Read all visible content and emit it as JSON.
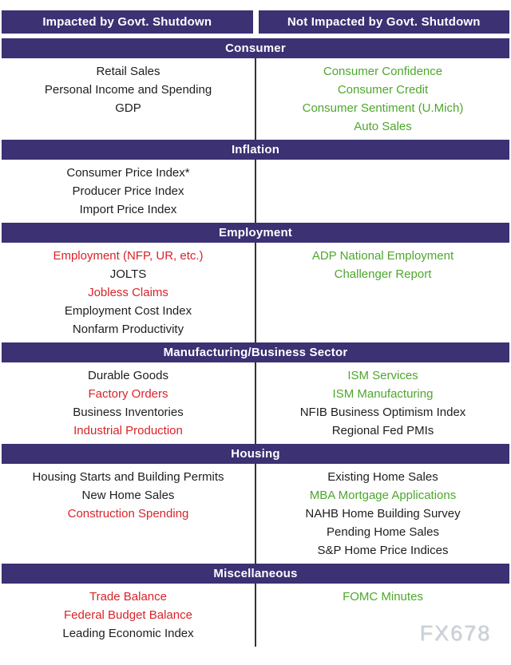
{
  "chart_data": {
    "type": "table",
    "columns": [
      "Impacted by Govt. Shutdown",
      "Not Impacted by Govt. Shutdown"
    ],
    "sections": [
      {
        "title": "Consumer",
        "impacted": [
          {
            "label": "Retail Sales",
            "color": "black"
          },
          {
            "label": "Personal Income and Spending",
            "color": "black"
          },
          {
            "label": "GDP",
            "color": "black"
          }
        ],
        "not_impacted": [
          {
            "label": "Consumer Confidence",
            "color": "green"
          },
          {
            "label": "Consumer Credit",
            "color": "green"
          },
          {
            "label": "Consumer Sentiment (U.Mich)",
            "color": "green"
          },
          {
            "label": "Auto Sales",
            "color": "green"
          }
        ]
      },
      {
        "title": "Inflation",
        "impacted": [
          {
            "label": "Consumer Price Index*",
            "color": "black"
          },
          {
            "label": "Producer Price Index",
            "color": "black"
          },
          {
            "label": "Import Price Index",
            "color": "black"
          }
        ],
        "not_impacted": []
      },
      {
        "title": "Employment",
        "impacted": [
          {
            "label": "Employment (NFP, UR, etc.)",
            "color": "red"
          },
          {
            "label": "JOLTS",
            "color": "black"
          },
          {
            "label": "Jobless Claims",
            "color": "red"
          },
          {
            "label": "Employment Cost Index",
            "color": "black"
          },
          {
            "label": "Nonfarm Productivity",
            "color": "black"
          }
        ],
        "not_impacted": [
          {
            "label": "ADP National Employment",
            "color": "green"
          },
          {
            "label": "Challenger Report",
            "color": "green"
          }
        ]
      },
      {
        "title": "Manufacturing/Business Sector",
        "impacted": [
          {
            "label": "Durable Goods",
            "color": "black"
          },
          {
            "label": "Factory Orders",
            "color": "red"
          },
          {
            "label": "Business Inventories",
            "color": "black"
          },
          {
            "label": "Industrial Production",
            "color": "red"
          }
        ],
        "not_impacted": [
          {
            "label": "ISM Services",
            "color": "green"
          },
          {
            "label": "ISM Manufacturing",
            "color": "green"
          },
          {
            "label": "NFIB Business Optimism Index",
            "color": "black"
          },
          {
            "label": "Regional Fed PMIs",
            "color": "black"
          }
        ]
      },
      {
        "title": "Housing",
        "impacted": [
          {
            "label": "Housing Starts and Building Permits",
            "color": "black"
          },
          {
            "label": "New Home Sales",
            "color": "black"
          },
          {
            "label": "Construction Spending",
            "color": "red"
          }
        ],
        "not_impacted": [
          {
            "label": "Existing Home Sales",
            "color": "black"
          },
          {
            "label": "MBA Mortgage Applications",
            "color": "green"
          },
          {
            "label": "NAHB Home Building Survey",
            "color": "black"
          },
          {
            "label": "Pending Home Sales",
            "color": "black"
          },
          {
            "label": "S&P Home Price Indices",
            "color": "black"
          }
        ]
      },
      {
        "title": "Miscellaneous",
        "impacted": [
          {
            "label": "Trade Balance",
            "color": "red"
          },
          {
            "label": "Federal Budget Balance",
            "color": "red"
          },
          {
            "label": "Leading Economic Index",
            "color": "black"
          }
        ],
        "not_impacted": [
          {
            "label": "FOMC Minutes",
            "color": "green"
          }
        ]
      }
    ]
  },
  "colors": {
    "black": "#1e1e1e",
    "red": "#d9232a",
    "green": "#4ea72d",
    "purple": "#3b3173",
    "divider": "#333333",
    "watermark": "#c6cfdc"
  },
  "watermark": "FX678"
}
